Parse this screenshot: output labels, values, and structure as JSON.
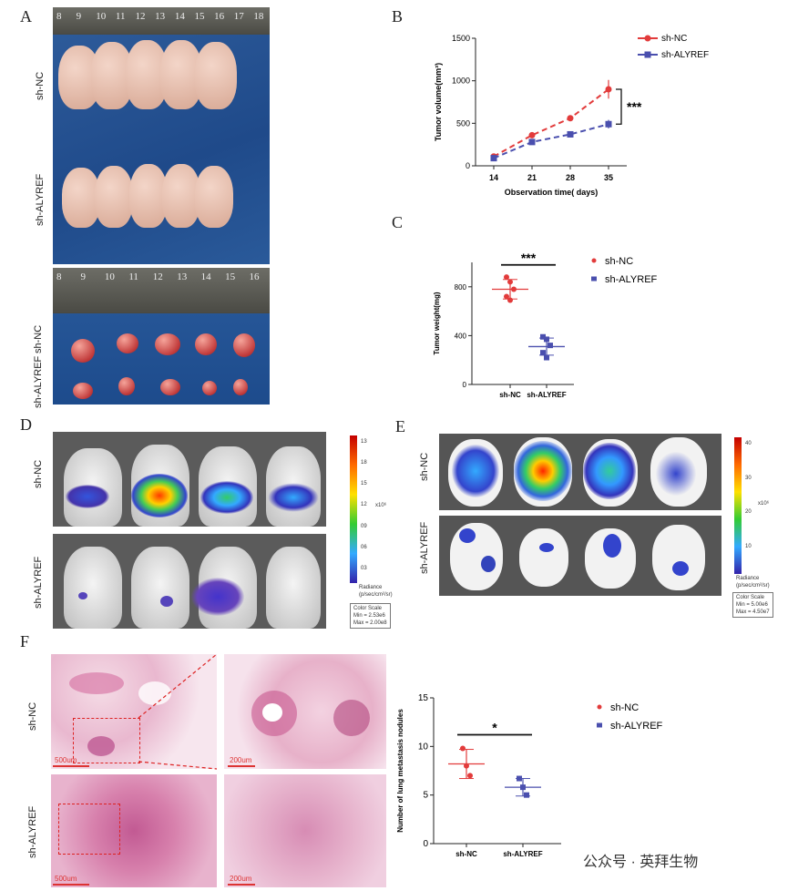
{
  "panels": {
    "A": "A",
    "B": "B",
    "C": "C",
    "D": "D",
    "E": "E",
    "F": "F"
  },
  "groups": {
    "nc": "sh-NC",
    "alyref": "sh-ALYREF"
  },
  "ruler_top": [
    "8",
    "9",
    "10",
    "11",
    "12",
    "13",
    "14",
    "15",
    "16",
    "17",
    "18"
  ],
  "ruler_mid": [
    "8",
    "9",
    "10",
    "11",
    "12",
    "13",
    "14",
    "15",
    "16"
  ],
  "colors": {
    "nc": "#e23b3b",
    "alyref": "#4a4fae"
  },
  "chart_data": [
    {
      "id": "B",
      "type": "line",
      "x": [
        14,
        21,
        28,
        35
      ],
      "xlabel": "Observation time( days)",
      "ylabel": "Tumor volume(mm³)",
      "ylim": [
        0,
        1500
      ],
      "yticks": [
        0,
        500,
        1000,
        1500
      ],
      "significance": "***",
      "legend": "top-right",
      "series": [
        {
          "name": "sh-NC",
          "values": [
            110,
            360,
            560,
            900
          ],
          "err": [
            10,
            20,
            25,
            110
          ]
        },
        {
          "name": "sh-ALYREF",
          "values": [
            90,
            280,
            370,
            490
          ],
          "err": [
            8,
            15,
            20,
            50
          ]
        }
      ]
    },
    {
      "id": "C",
      "type": "scatter",
      "categories": [
        "sh-NC",
        "sh-ALYREF"
      ],
      "ylabel": "Tumor weight(mg)",
      "ylim": [
        0,
        1000
      ],
      "yticks": [
        0,
        400,
        800
      ],
      "significance": "***",
      "legend": "top-right",
      "series": [
        {
          "name": "sh-NC",
          "points": [
            880,
            840,
            780,
            720,
            690
          ],
          "mean": 780,
          "sd": 80
        },
        {
          "name": "sh-ALYREF",
          "points": [
            390,
            370,
            320,
            260,
            220
          ],
          "mean": 310,
          "sd": 70
        }
      ]
    },
    {
      "id": "F",
      "type": "scatter",
      "categories": [
        "sh-NC",
        "sh-ALYREF"
      ],
      "ylabel": "Number of lung metastasis nodules",
      "ylim": [
        0,
        15
      ],
      "yticks": [
        0,
        5,
        10,
        15
      ],
      "significance": "*",
      "legend": "top-right",
      "series": [
        {
          "name": "sh-NC",
          "points": [
            9.8,
            8,
            7
          ],
          "mean": 8.2,
          "sd": 1.5
        },
        {
          "name": "sh-ALYREF",
          "points": [
            6.7,
            5.8,
            5
          ],
          "mean": 5.8,
          "sd": 0.9
        }
      ]
    }
  ],
  "ivis": {
    "colorbar_title": "Radiance",
    "colorbar_unit": "(p/sec/cm²/sr)",
    "scale_unit": "x10⁶",
    "d_ticks": [
      "13",
      "18",
      "15",
      "12",
      "09",
      "06",
      "03"
    ],
    "e_ticks": [
      "40",
      "30",
      "20",
      "10"
    ],
    "color_scale": "Color Scale",
    "min_label": "Min = 2.53e6",
    "max_label": "Max = 2.00e8",
    "e_min_label": "Min = 5.00e6",
    "e_max_label": "Max = 4.50e7"
  },
  "scalebars": {
    "s500": "500um",
    "s200": "200um"
  },
  "watermark": "公众号 · 英拜生物"
}
